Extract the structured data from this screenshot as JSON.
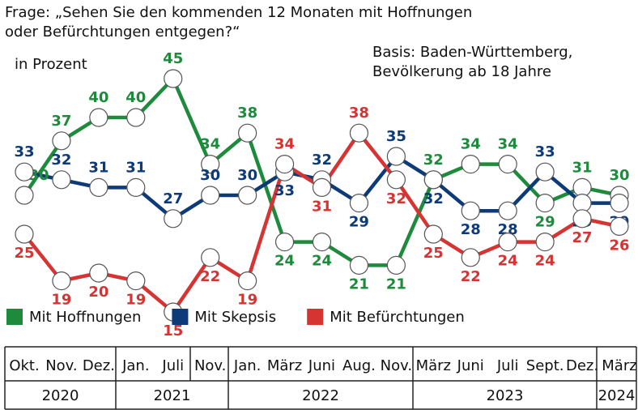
{
  "chart_data": {
    "type": "line",
    "title": [
      "Frage: „Sehen Sie den kommenden 12 Monaten mit Hoffnungen",
      "oder Befürchtungen entgegen?“"
    ],
    "unit": "in Prozent",
    "note": [
      "Basis: Baden-Württemberg,",
      "Bevölkerung ab 18 Jahre"
    ],
    "categories": [
      "Okt.",
      "Nov.",
      "Dez.",
      "Jan.",
      "Juli",
      "Nov.",
      "Jan.",
      "März",
      "Juni",
      "Aug.",
      "Nov.",
      "März",
      "Juni",
      "Juli",
      "Sept.",
      "Dez.",
      "März"
    ],
    "years": [
      "2020",
      "2021",
      "2022",
      "2023",
      "2024"
    ],
    "series": [
      {
        "name": "Mit Hoffnungen",
        "color": "#1e8a3c",
        "values": [
          30,
          37,
          40,
          40,
          45,
          34,
          38,
          24,
          24,
          21,
          21,
          32,
          34,
          34,
          29,
          31,
          30
        ]
      },
      {
        "name": "Mit Skepsis",
        "color": "#0d3a78",
        "values": [
          33,
          32,
          31,
          31,
          27,
          30,
          30,
          33,
          32,
          29,
          35,
          32,
          28,
          28,
          33,
          29,
          29
        ]
      },
      {
        "name": "Mit Befürchtungen",
        "color": "#d63333",
        "values": [
          25,
          19,
          20,
          19,
          15,
          22,
          19,
          34,
          31,
          38,
          32,
          25,
          22,
          24,
          24,
          27,
          26
        ]
      }
    ]
  }
}
